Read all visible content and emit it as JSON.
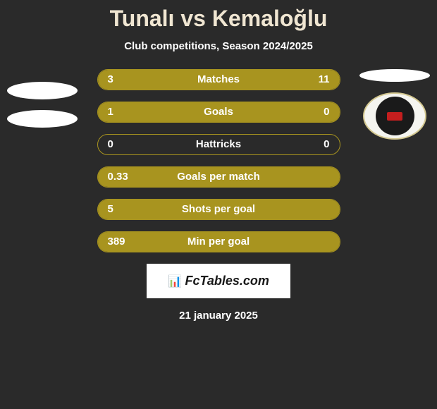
{
  "title": "Tunalı vs Kemaloğlu",
  "subtitle": "Club competitions, Season 2024/2025",
  "date": "21 january 2025",
  "brand": "FcTables.com",
  "colors": {
    "left_fill": "#a8941f",
    "right_fill": "#a8941f",
    "border": "#a8941f",
    "background": "#2a2a2a",
    "text": "#ffffff",
    "title_color": "#f0e6d2"
  },
  "bars": [
    {
      "label": "Matches",
      "left_val": "3",
      "right_val": "11",
      "left_pct": 21,
      "right_pct": 79,
      "left_color": "#a8941f",
      "right_color": "#a8941f"
    },
    {
      "label": "Goals",
      "left_val": "1",
      "right_val": "0",
      "left_pct": 100,
      "right_pct": 0,
      "left_color": "#a8941f",
      "right_color": "#a8941f"
    },
    {
      "label": "Hattricks",
      "left_val": "0",
      "right_val": "0",
      "left_pct": 0,
      "right_pct": 0,
      "left_color": "#a8941f",
      "right_color": "#a8941f"
    },
    {
      "label": "Goals per match",
      "left_val": "0.33",
      "right_val": "",
      "left_pct": 100,
      "right_pct": 0,
      "left_color": "#a8941f",
      "right_color": "#a8941f"
    },
    {
      "label": "Shots per goal",
      "left_val": "5",
      "right_val": "",
      "left_pct": 100,
      "right_pct": 0,
      "left_color": "#a8941f",
      "right_color": "#a8941f"
    },
    {
      "label": "Min per goal",
      "left_val": "389",
      "right_val": "",
      "left_pct": 100,
      "right_pct": 0,
      "left_color": "#a8941f",
      "right_color": "#a8941f"
    }
  ]
}
